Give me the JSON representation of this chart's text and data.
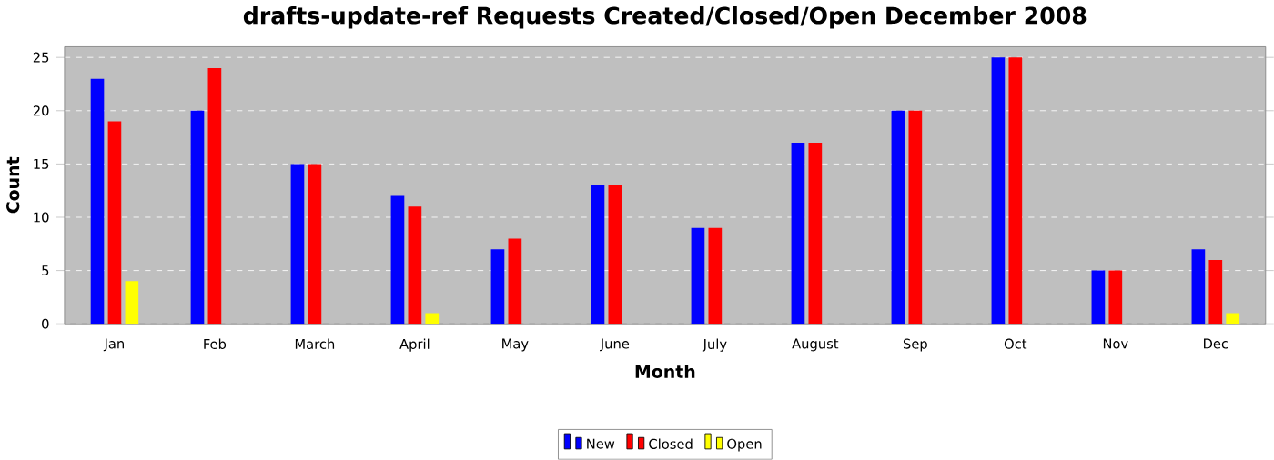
{
  "chart_data": {
    "type": "bar",
    "title": "drafts-update-ref Requests Created/Closed/Open December 2008",
    "xlabel": "Month",
    "ylabel": "Count",
    "categories": [
      "Jan",
      "Feb",
      "March",
      "April",
      "May",
      "June",
      "July",
      "August",
      "Sep",
      "Oct",
      "Nov",
      "Dec"
    ],
    "series": [
      {
        "name": "New",
        "color": "#0000ff",
        "values": [
          23,
          20,
          15,
          12,
          7,
          13,
          9,
          17,
          20,
          25,
          5,
          7
        ]
      },
      {
        "name": "Closed",
        "color": "#ff0000",
        "values": [
          19,
          24,
          15,
          11,
          8,
          13,
          9,
          17,
          20,
          25,
          5,
          6
        ]
      },
      {
        "name": "Open",
        "color": "#ffff00",
        "values": [
          4,
          0,
          0,
          1,
          0,
          0,
          0,
          0,
          0,
          0,
          0,
          1
        ]
      }
    ],
    "ylim": [
      0,
      26
    ],
    "yticks": [
      0,
      5,
      10,
      15,
      20,
      25
    ],
    "grid": "y",
    "legend": "bottom"
  }
}
